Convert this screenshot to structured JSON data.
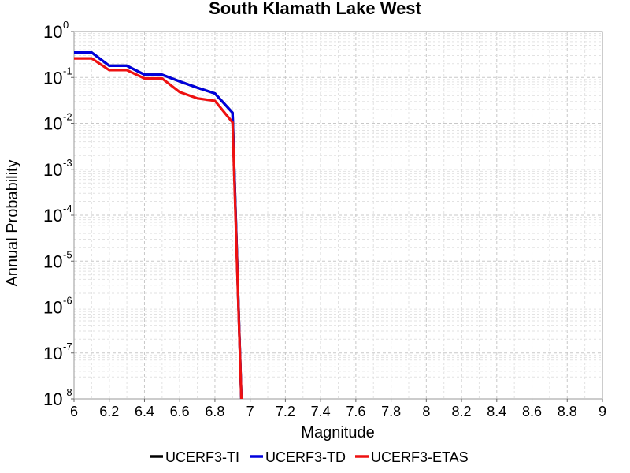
{
  "chart_data": {
    "type": "line",
    "title": "South Klamath Lake West",
    "xlabel": "Magnitude",
    "ylabel": "Annual Probability",
    "xlim": [
      6,
      9
    ],
    "ylim": [
      1e-08,
      1
    ],
    "yscale": "log",
    "grid": true,
    "legend_position": "bottom",
    "x_ticks": [
      "6",
      "6.2",
      "6.4",
      "6.6",
      "6.8",
      "7",
      "7.2",
      "7.4",
      "7.6",
      "7.8",
      "8",
      "8.2",
      "8.4",
      "8.6",
      "8.8",
      "9"
    ],
    "y_ticks": [
      {
        "base": "10",
        "exp": "0"
      },
      {
        "base": "10",
        "exp": "-1"
      },
      {
        "base": "10",
        "exp": "-2"
      },
      {
        "base": "10",
        "exp": "-3"
      },
      {
        "base": "10",
        "exp": "-4"
      },
      {
        "base": "10",
        "exp": "-5"
      },
      {
        "base": "10",
        "exp": "-6"
      },
      {
        "base": "10",
        "exp": "-7"
      },
      {
        "base": "10",
        "exp": "-8"
      }
    ],
    "series": [
      {
        "name": "UCERF3-TI",
        "color": "#000000",
        "x": [
          6.0,
          6.1,
          6.2,
          6.3,
          6.4,
          6.5,
          6.6,
          6.7,
          6.8,
          6.9,
          6.95
        ],
        "y": [
          0.35,
          0.35,
          0.18,
          0.18,
          0.115,
          0.115,
          0.082,
          0.06,
          0.045,
          0.017,
          1e-08
        ]
      },
      {
        "name": "UCERF3-TD",
        "color": "#0000dd",
        "x": [
          6.0,
          6.1,
          6.2,
          6.3,
          6.4,
          6.5,
          6.6,
          6.7,
          6.8,
          6.9,
          6.95
        ],
        "y": [
          0.35,
          0.35,
          0.18,
          0.18,
          0.115,
          0.115,
          0.082,
          0.06,
          0.045,
          0.017,
          1e-08
        ]
      },
      {
        "name": "UCERF3-ETAS",
        "color": "#ee1111",
        "x": [
          6.0,
          6.1,
          6.2,
          6.3,
          6.4,
          6.5,
          6.6,
          6.7,
          6.8,
          6.9,
          6.95
        ],
        "y": [
          0.26,
          0.26,
          0.145,
          0.145,
          0.095,
          0.095,
          0.048,
          0.035,
          0.031,
          0.0105,
          1e-08
        ]
      }
    ]
  }
}
